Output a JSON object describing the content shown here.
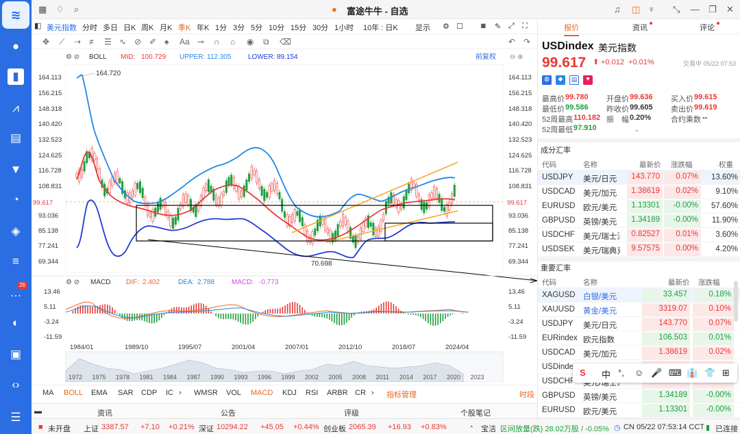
{
  "app": {
    "title": "富途牛牛 - 自选"
  },
  "sidebar": {
    "badge": "26"
  },
  "period": {
    "tabs": [
      "美元指数",
      "分时",
      "多日",
      "日K",
      "周K",
      "月K",
      "季K",
      "年K",
      "1分",
      "3分",
      "5分",
      "10分",
      "15分",
      "30分",
      "1小时",
      "10年 : 日K",
      "显示"
    ],
    "active": "季K"
  },
  "chart": {
    "boll": {
      "label": "BOLL",
      "mid_label": "MID:",
      "mid": "100.729",
      "upper_label": "UPPER:",
      "upper": "112.305",
      "lower_label": "LOWER:",
      "lower": "89.154"
    },
    "adjust": "前复权",
    "y_ticks": [
      "164.113",
      "156.215",
      "148.318",
      "140.420",
      "132.523",
      "124.625",
      "116.728",
      "108.831",
      "93.036",
      "85.138",
      "77.241",
      "69.344"
    ],
    "current": "99.617",
    "high_mark": "164.720",
    "low_mark": "70.698",
    "macd": {
      "label": "MACD",
      "dif_label": "DIF:",
      "dif": "2.402",
      "dea_label": "DEA:",
      "dea": "2.788",
      "macd_label": "MACD:",
      "macd": "-0.773",
      "ticks": [
        "13.46",
        "5.11",
        "-3.24",
        "-11.59"
      ]
    },
    "x_labels": [
      "1984/01",
      "1989/10",
      "1995/07",
      "2001/04",
      "2007/01",
      "2012/10",
      "2018/07",
      "2024/04"
    ],
    "overview_years": [
      "1972",
      "1975",
      "1978",
      "1981",
      "1984",
      "1987",
      "1990",
      "1993",
      "1996",
      "1999",
      "2002",
      "2005",
      "2008",
      "2011",
      "2014",
      "2017",
      "2020",
      "2023"
    ]
  },
  "indicators": {
    "items": [
      "MA",
      "BOLL",
      "EMA",
      "SAR",
      "CDP",
      "IC",
      "WMSR",
      "VOL",
      "MACD",
      "KDJ",
      "RSI",
      "ARBR",
      "CR"
    ],
    "manage": "指标管理",
    "right": "时段"
  },
  "newsbar": {
    "items": [
      "资讯",
      "公告",
      "评级",
      "个股笔记"
    ]
  },
  "quote": {
    "tabs": [
      "报价",
      "资讯",
      "评论"
    ],
    "code": "USDindex",
    "name": "美元指数",
    "price": "99.617",
    "change": "+0.012",
    "pct": "+0.01%",
    "trade_status": "交易中 05/22 07:53",
    "stats": [
      {
        "k": "最高价",
        "v": "99.780",
        "c": "red"
      },
      {
        "k": "开盘价",
        "v": "99.636",
        "c": "red"
      },
      {
        "k": "买入价",
        "v": "99.615",
        "c": "red"
      },
      {
        "k": "最低价",
        "v": "99.586",
        "c": "green"
      },
      {
        "k": "昨收价",
        "v": "99.605",
        "c": "dark"
      },
      {
        "k": "卖出价",
        "v": "99.619",
        "c": "red"
      },
      {
        "k": "52周最高",
        "v": "110.182",
        "c": "red"
      },
      {
        "k": "振　幅",
        "v": "0.20%",
        "c": "dark"
      },
      {
        "k": "合约乘数",
        "v": "--",
        "c": "dark"
      },
      {
        "k": "52周最低",
        "v": "97.910",
        "c": "green"
      }
    ]
  },
  "components": {
    "title": "成分汇率",
    "headers": [
      "代码",
      "名称",
      "最新价",
      "涨跌幅",
      "权重"
    ],
    "rows": [
      {
        "code": "USDJPY",
        "name": "美元/日元",
        "price": "143.770",
        "pct": "0.07%",
        "w": "13.60%",
        "dir": "up"
      },
      {
        "code": "USDCAD",
        "name": "美元/加元",
        "price": "1.38619",
        "pct": "0.02%",
        "w": "9.10%",
        "dir": "up"
      },
      {
        "code": "EURUSD",
        "name": "欧元/美元",
        "price": "1.13301",
        "pct": "-0.00%",
        "w": "57.60%",
        "dir": "dn"
      },
      {
        "code": "GBPUSD",
        "name": "英镑/美元",
        "price": "1.34189",
        "pct": "-0.00%",
        "w": "11.90%",
        "dir": "dn"
      },
      {
        "code": "USDCHF",
        "name": "美元/瑞士法郎",
        "price": "0.82527",
        "pct": "0.01%",
        "w": "3.60%",
        "dir": "up"
      },
      {
        "code": "USDSEK",
        "name": "美元/瑞典克朗",
        "price": "9.57575",
        "pct": "0.00%",
        "w": "4.20%",
        "dir": "up"
      }
    ]
  },
  "important": {
    "title": "重要汇率",
    "headers": [
      "代码",
      "名称",
      "最新价",
      "涨跌幅"
    ],
    "rows": [
      {
        "code": "XAGUSD",
        "name": "白银/美元",
        "price": "33.457",
        "pct": "0.18%",
        "dir": "dn"
      },
      {
        "code": "XAUUSD",
        "name": "黄金/美元",
        "price": "3319.07",
        "pct": "0.10%",
        "dir": "up"
      },
      {
        "code": "USDJPY",
        "name": "美元/日元",
        "price": "143.770",
        "pct": "0.07%",
        "dir": "up"
      },
      {
        "code": "EURindex",
        "name": "欧元指数",
        "price": "106.503",
        "pct": "0.01%",
        "dir": "dn"
      },
      {
        "code": "USDCAD",
        "name": "美元/加元",
        "price": "1.38619",
        "pct": "0.02%",
        "dir": "up"
      },
      {
        "code": "USDindex",
        "name": "美元指数",
        "price": "",
        "pct": "",
        "dir": "up"
      },
      {
        "code": "USDCHF",
        "name": "美元/瑞士法郎",
        "price": "0.82527",
        "pct": "0.01%",
        "dir": "up"
      },
      {
        "code": "GBPUSD",
        "name": "英镑/美元",
        "price": "1.34189",
        "pct": "-0.00%",
        "dir": "dn"
      },
      {
        "code": "EURUSD",
        "name": "欧元/美元",
        "price": "1.13301",
        "pct": "-0.00%",
        "dir": "dn"
      }
    ]
  },
  "status": {
    "market": "未开盘",
    "idx": [
      {
        "n": "上证",
        "v": "3387.57",
        "c": "+7.10",
        "p": "+0.21%"
      },
      {
        "n": "深证",
        "v": "10294.22",
        "c": "+45.05",
        "p": "+0.44%"
      },
      {
        "n": "创业板",
        "v": "2065.39",
        "c": "+16.93",
        "p": "+0.83%"
      }
    ],
    "news": "宝洁",
    "flow": "区间放量(跌) 28.02万股 / -0.05%",
    "time": "CN 05/22 07:53:14 CCT",
    "conn": "已连接"
  },
  "ime": {
    "items": [
      "中",
      "°,",
      "☺",
      "🎤",
      "⌨",
      "👔",
      "👕",
      "⊞"
    ]
  }
}
